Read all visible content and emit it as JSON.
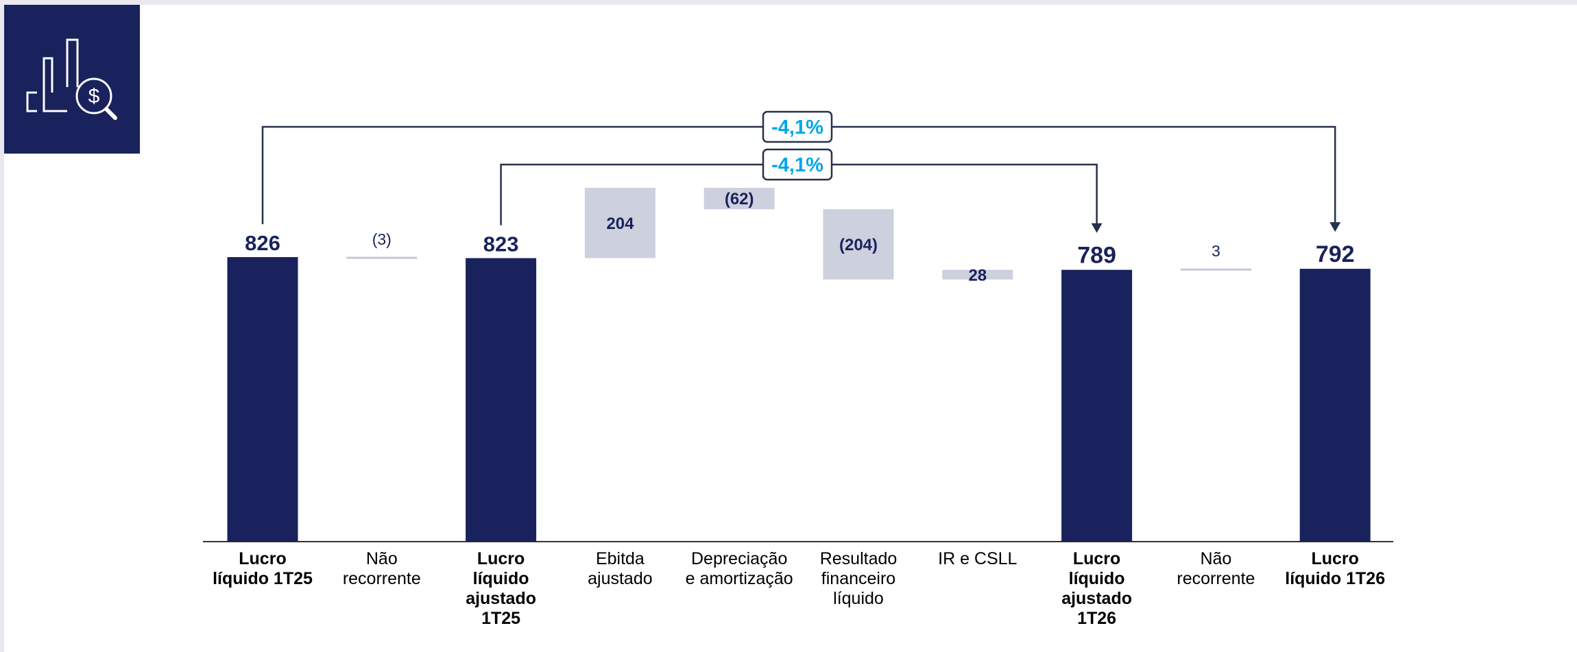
{
  "colors": {
    "total_bar": "#19225c",
    "delta_bar": "#cdd0dd",
    "delta_line": "#c4c7d4",
    "value_text": "#19225c",
    "bracket_line": "#27304a",
    "pct_text": "#00a6e8",
    "axis": "#333333",
    "icon_bg": "#19225c",
    "icon_stroke": "#ffffff"
  },
  "icon": {
    "name": "chart-dollar-search-icon"
  },
  "chart_data": {
    "type": "waterfall",
    "categories": [
      "Lucro líquido 1T25",
      "Não recorrente",
      "Lucro líquido ajustado 1T25",
      "Ebitda ajustado",
      "Depreciação e amortização",
      "Resultado financeiro líquido",
      "IR e CSLL",
      "Lucro líquido ajustado 1T26",
      "Não recorrente",
      "Lucro líquido 1T26"
    ],
    "items": [
      {
        "category": "Lucro líquido 1T25",
        "kind": "total",
        "value": 826,
        "label": "826"
      },
      {
        "category": "Não recorrente",
        "kind": "delta",
        "value": -3,
        "label": "(3)"
      },
      {
        "category": "Lucro líquido ajustado 1T25",
        "kind": "total",
        "value": 823,
        "label": "823"
      },
      {
        "category": "Ebitda ajustado",
        "kind": "delta",
        "value": 204,
        "label": "204"
      },
      {
        "category": "Depreciação e amortização",
        "kind": "delta",
        "value": -62,
        "label": "(62)"
      },
      {
        "category": "Resultado financeiro líquido",
        "kind": "delta",
        "value": -204,
        "label": "(204)"
      },
      {
        "category": "IR e CSLL",
        "kind": "delta",
        "value": 28,
        "label": "28"
      },
      {
        "category": "Lucro líquido ajustado 1T26",
        "kind": "total",
        "value": 789,
        "label": "789"
      },
      {
        "category": "Não recorrente",
        "kind": "delta",
        "value": 3,
        "label": "3"
      },
      {
        "category": "Lucro líquido 1T26",
        "kind": "total",
        "value": 792,
        "label": "792"
      }
    ],
    "comparisons": [
      {
        "from_index": 0,
        "to_index": 9,
        "label": "-4,1%"
      },
      {
        "from_index": 2,
        "to_index": 7,
        "label": "-4,1%"
      }
    ],
    "ylim": [
      0,
      826
    ],
    "grid": false,
    "legend": "none",
    "xlabel": "",
    "ylabel": "",
    "title": ""
  }
}
